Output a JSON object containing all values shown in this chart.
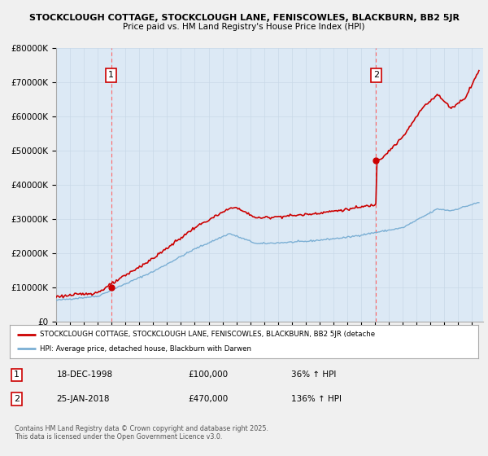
{
  "title_line1": "STOCKCLOUGH COTTAGE, STOCKCLOUGH LANE, FENISCOWLES, BLACKBURN, BB2 5JR",
  "title_line2": "Price paid vs. HM Land Registry's House Price Index (HPI)",
  "background_color": "#f0f0f0",
  "plot_bg_color": "#dce9f5",
  "red_color": "#cc0000",
  "blue_color": "#7bafd4",
  "dashed_red": "#ff6666",
  "ylim_min": 0,
  "ylim_max": 800000,
  "sale1_date_x": 1998.96,
  "sale1_price": 100000,
  "sale2_date_x": 2018.07,
  "sale2_price": 470000,
  "legend_line1": "STOCKCLOUGH COTTAGE, STOCKCLOUGH LANE, FENISCOWLES, BLACKBURN, BB2 5JR (detache",
  "legend_line2": "HPI: Average price, detached house, Blackburn with Darwen",
  "table_row1_num": "1",
  "table_row1_date": "18-DEC-1998",
  "table_row1_price": "£100,000",
  "table_row1_hpi": "36% ↑ HPI",
  "table_row2_num": "2",
  "table_row2_date": "25-JAN-2018",
  "table_row2_price": "£470,000",
  "table_row2_hpi": "136% ↑ HPI",
  "footer": "Contains HM Land Registry data © Crown copyright and database right 2025.\nThis data is licensed under the Open Government Licence v3.0.",
  "xmin": 1995.0,
  "xmax": 2025.8
}
